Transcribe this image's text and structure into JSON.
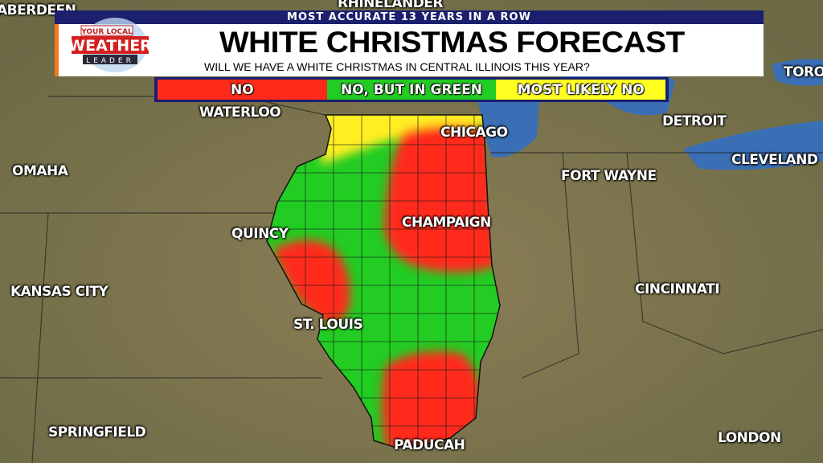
{
  "header": {
    "banner": "MOST ACCURATE 13 YEARS IN A ROW",
    "title": "WHITE CHRISTMAS FORECAST",
    "subtitle": "WILL WE HAVE A WHITE CHRISTMAS IN CENTRAL ILLINOIS THIS YEAR?",
    "logo_text": [
      "YOUR LOCAL",
      "WEATHER",
      "LEADER"
    ],
    "accent_color": "#f07a1a",
    "banner_color": "#1b1f6e"
  },
  "legend": [
    {
      "label": "NO",
      "color": "#ff2a1a"
    },
    {
      "label": "NO, BUT IN GREEN",
      "color": "#22cc22"
    },
    {
      "label": "MOST LIKELY NO",
      "color": "#ffff22"
    }
  ],
  "cities": {
    "aberdeen": "ABERDEEN",
    "rhinelander": "RHINELANDER",
    "toronto": "TORO",
    "waterloo": "WATERLOO",
    "chicago": "CHICAGO",
    "detroit": "DETROIT",
    "omaha": "OMAHA",
    "cleveland": "CLEVELAND",
    "fort_wayne": "FORT WAYNE",
    "quincy": "QUINCY",
    "champaign": "CHAMPAIGN",
    "kansas_city": "KANSAS CITY",
    "cincinnati": "CINCINNATI",
    "st_louis": "ST. LOUIS",
    "springfield": "SPRINGFIELD",
    "paducah": "PADUCAH",
    "london": "LONDON"
  }
}
